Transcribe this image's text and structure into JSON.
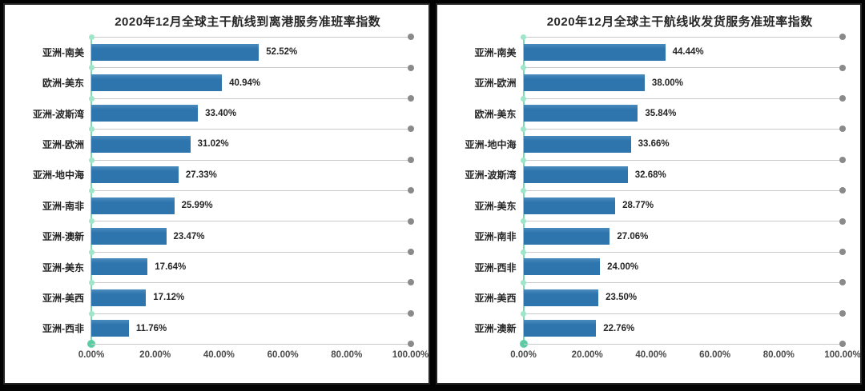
{
  "style": {
    "colors": {
      "bar": "#2e74ad",
      "bar_hi": "#4a8bbd",
      "axis": "#7cd8b5",
      "axis_mark": "#9fe5c9",
      "axis_origin": "#5bcda4",
      "grid": "#c9c9c9",
      "grid_dot": "#8a8a8a",
      "text": "#262626",
      "tick_text": "#4a4a4a",
      "panel_bg": "#ffffff",
      "panel_border": "#242424",
      "page_bg": "#030303"
    }
  },
  "chart_data": [
    {
      "type": "bar",
      "orientation": "horizontal",
      "title": "2020年12月全球主干航线到离港服务准班率指数",
      "categories": [
        "亚洲-南美",
        "欧洲-美东",
        "亚洲-波斯湾",
        "亚洲-欧洲",
        "亚洲-地中海",
        "亚洲-南非",
        "亚洲-澳新",
        "亚洲-美东",
        "亚洲-美西",
        "亚洲-西非"
      ],
      "values": [
        52.52,
        40.94,
        33.4,
        31.02,
        27.33,
        25.99,
        23.47,
        17.64,
        17.12,
        11.76
      ],
      "value_labels": [
        "52.52%",
        "40.94%",
        "33.40%",
        "31.02%",
        "27.33%",
        "25.99%",
        "23.47%",
        "17.64%",
        "17.12%",
        "11.76%"
      ],
      "x_ticks": [
        "0.00%",
        "20.00%",
        "40.00%",
        "60.00%",
        "80.00%",
        "100.00%"
      ],
      "xlim": [
        0,
        100
      ],
      "xlabel": "",
      "ylabel": "",
      "grid": true,
      "legend": false
    },
    {
      "type": "bar",
      "orientation": "horizontal",
      "title": "2020年12月全球主干航线收发货服务准班率指数",
      "categories": [
        "亚洲-南美",
        "亚洲-欧洲",
        "欧洲-美东",
        "亚洲-地中海",
        "亚洲-波斯湾",
        "亚洲-美东",
        "亚洲-南非",
        "亚洲-西非",
        "亚洲-美西",
        "亚洲-澳新"
      ],
      "values": [
        44.44,
        38.0,
        35.84,
        33.66,
        32.68,
        28.77,
        27.06,
        24.0,
        23.5,
        22.76
      ],
      "value_labels": [
        "44.44%",
        "38.00%",
        "35.84%",
        "33.66%",
        "32.68%",
        "28.77%",
        "27.06%",
        "24.00%",
        "23.50%",
        "22.76%"
      ],
      "x_ticks": [
        "0.00%",
        "20.00%",
        "40.00%",
        "60.00%",
        "80.00%",
        "100.00%"
      ],
      "xlim": [
        0,
        100
      ],
      "xlabel": "",
      "ylabel": "",
      "grid": true,
      "legend": false
    }
  ]
}
